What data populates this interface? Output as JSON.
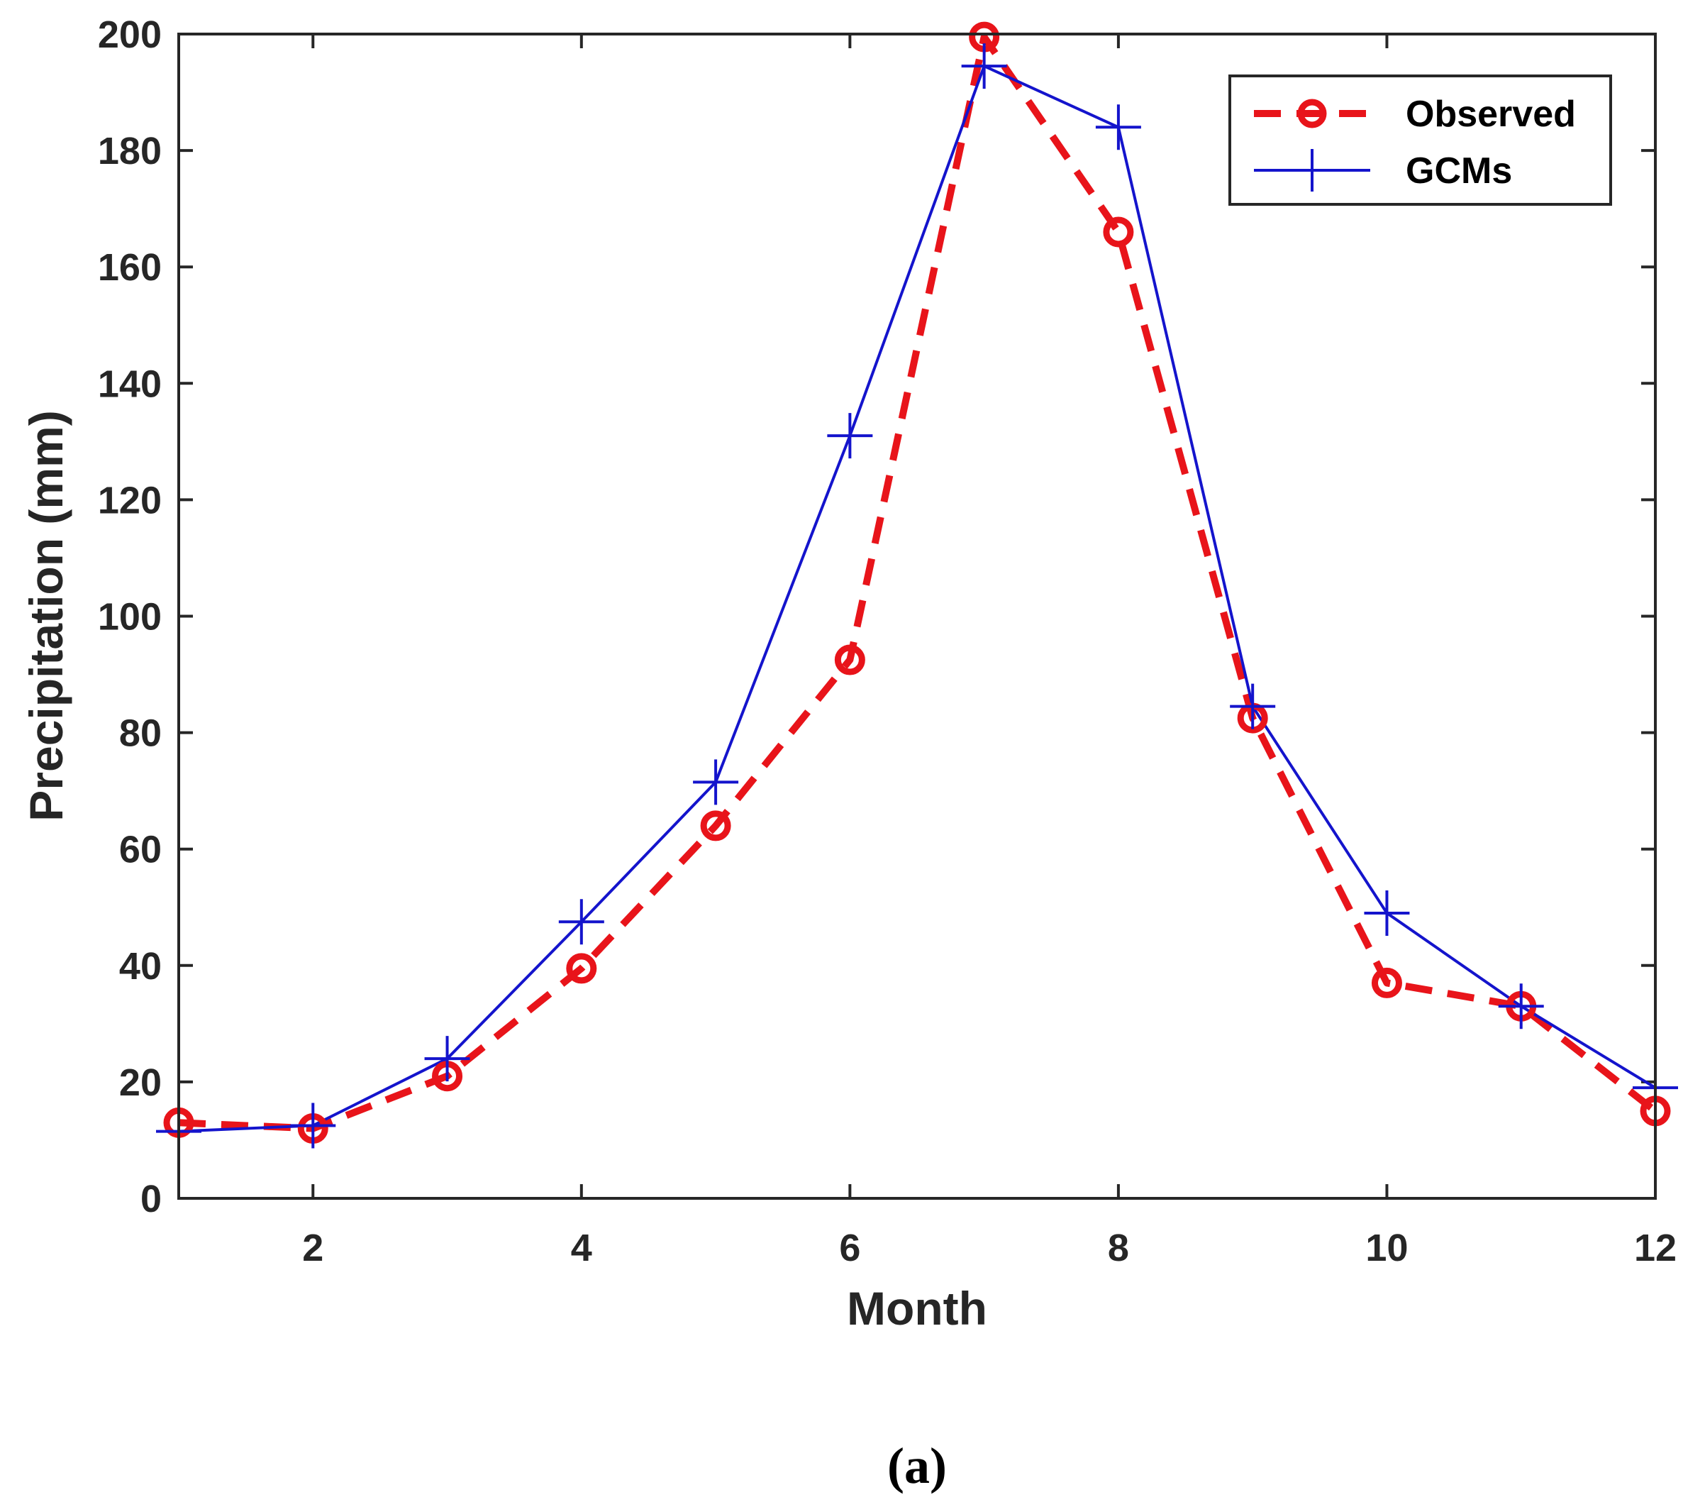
{
  "chart_data": {
    "type": "line",
    "title": "",
    "xlabel": "Month",
    "ylabel": "Precipitation (mm)",
    "xlim": [
      1,
      12
    ],
    "ylim": [
      0,
      200
    ],
    "xticks": [
      2,
      4,
      6,
      8,
      10,
      12
    ],
    "xtick_labels": [
      "2",
      "4",
      "6",
      "8",
      "10",
      "12"
    ],
    "yticks": [
      0,
      20,
      40,
      60,
      80,
      100,
      120,
      140,
      160,
      180,
      200
    ],
    "ytick_labels": [
      "0",
      "20",
      "40",
      "60",
      "80",
      "100",
      "120",
      "140",
      "160",
      "180",
      "200"
    ],
    "grid": false,
    "legend_position": "top-right",
    "x": [
      1,
      2,
      3,
      4,
      5,
      6,
      7,
      8,
      9,
      10,
      11,
      12
    ],
    "series": [
      {
        "name": "Observed",
        "values": [
          13,
          12,
          21,
          39.5,
          64,
          92.5,
          199.5,
          166,
          82.5,
          37,
          33,
          15
        ],
        "color": "#e8141a",
        "line_style": "dashed",
        "marker": "circle"
      },
      {
        "name": "GCMs",
        "values": [
          11.5,
          12.5,
          24,
          47.5,
          71.5,
          131,
          194.5,
          184,
          84.5,
          49,
          33,
          19
        ],
        "color": "#1414cc",
        "line_style": "solid",
        "marker": "plus"
      }
    ]
  },
  "caption": "(a)"
}
